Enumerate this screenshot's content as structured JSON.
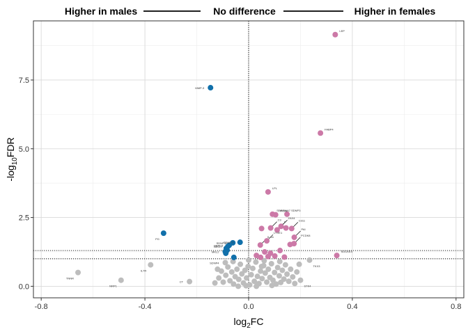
{
  "chart_data": {
    "type": "scatter",
    "title": "",
    "xlabel": "log",
    "xlabel_sub": "2",
    "xlabel_suffix": "FC",
    "ylabel_prefix": "-log",
    "ylabel_sub": "10",
    "ylabel_suffix": "FDR",
    "xlim": [
      -0.83,
      0.83
    ],
    "ylim": [
      -0.42,
      9.65
    ],
    "x_ticks": [
      -0.8,
      -0.4,
      0.0,
      0.4,
      0.8
    ],
    "x_tick_labels": [
      "-0.8",
      "-0.4",
      "0.0",
      "0.4",
      "0.8"
    ],
    "y_ticks": [
      0.0,
      2.5,
      5.0,
      7.5
    ],
    "y_tick_labels": [
      "0.0",
      "2.5",
      "5.0",
      "7.5"
    ],
    "grid": true,
    "vline_x": 0,
    "hlines_y": [
      1.0,
      1.3
    ],
    "header": {
      "left": "Higher in males",
      "center": "No difference",
      "right": "Higher in females"
    },
    "colors": {
      "males": "#1170aa",
      "females": "#cc79a7",
      "none": "#bdbdbd"
    },
    "series": [
      {
        "group": "males",
        "points": [
          {
            "x": -0.147,
            "y": 7.22,
            "label": "MMP-3"
          },
          {
            "x": -0.328,
            "y": 1.93,
            "label": "PG"
          },
          {
            "x": -0.061,
            "y": 1.58,
            "label": "SDNP-2"
          },
          {
            "x": -0.033,
            "y": 1.6,
            "label": "SDNP-T"
          },
          {
            "x": -0.075,
            "y": 1.49,
            "label": "MMP-8"
          },
          {
            "x": -0.08,
            "y": 1.45,
            "label": "NECR"
          },
          {
            "x": -0.086,
            "y": 1.38,
            "label": ""
          },
          {
            "x": -0.083,
            "y": 1.31,
            "label": ""
          },
          {
            "x": -0.09,
            "y": 1.26,
            "label": "MKL2"
          },
          {
            "x": -0.088,
            "y": 1.2,
            "label": ""
          },
          {
            "x": -0.057,
            "y": 1.05,
            "label": ""
          }
        ]
      },
      {
        "group": "females",
        "points": [
          {
            "x": 0.334,
            "y": 9.15,
            "label": "LEP"
          },
          {
            "x": 0.277,
            "y": 5.57,
            "label": "FABP4"
          },
          {
            "x": 0.075,
            "y": 3.43,
            "label": "LPL"
          },
          {
            "x": 0.092,
            "y": 2.62,
            "label": "SERPINA7"
          },
          {
            "x": 0.104,
            "y": 2.6,
            "label": "PKDC"
          },
          {
            "x": 0.148,
            "y": 2.62,
            "label": "SDNP3"
          },
          {
            "x": 0.05,
            "y": 2.1,
            "label": ""
          },
          {
            "x": 0.085,
            "y": 2.12,
            "label": "C3"
          },
          {
            "x": 0.125,
            "y": 2.18,
            "label": "ZAX4"
          },
          {
            "x": 0.144,
            "y": 2.12,
            "label": ""
          },
          {
            "x": 0.166,
            "y": 2.1,
            "label": "Cd11"
          },
          {
            "x": 0.11,
            "y": 2.05,
            "label": "P"
          },
          {
            "x": 0.07,
            "y": 1.65,
            "label": "LYVE1"
          },
          {
            "x": 0.176,
            "y": 1.78,
            "label": "PAI"
          },
          {
            "x": 0.16,
            "y": 1.52,
            "label": ""
          },
          {
            "x": 0.175,
            "y": 1.55,
            "label": "PCDK8"
          },
          {
            "x": 0.045,
            "y": 1.5,
            "label": "IL-1b"
          },
          {
            "x": 0.121,
            "y": 1.3,
            "label": ""
          },
          {
            "x": 0.062,
            "y": 1.25,
            "label": ""
          },
          {
            "x": 0.084,
            "y": 1.2,
            "label": ""
          },
          {
            "x": 0.03,
            "y": 1.12,
            "label": ""
          },
          {
            "x": 0.046,
            "y": 1.05,
            "label": ""
          },
          {
            "x": 0.075,
            "y": 1.08,
            "label": ""
          },
          {
            "x": 0.101,
            "y": 1.1,
            "label": ""
          },
          {
            "x": 0.138,
            "y": 1.06,
            "label": ""
          },
          {
            "x": 0.34,
            "y": 1.12,
            "label": "SOCKE4"
          }
        ]
      },
      {
        "group": "none",
        "points": [
          {
            "x": -0.658,
            "y": 0.5,
            "label": "TNNR"
          },
          {
            "x": -0.492,
            "y": 0.22,
            "label": "NRP1"
          },
          {
            "x": -0.378,
            "y": 0.78,
            "label": "IL7R"
          },
          {
            "x": -0.228,
            "y": 0.17,
            "label": "CT"
          },
          {
            "x": -0.09,
            "y": 0.86,
            "label": "SDNP4"
          },
          {
            "x": 0.235,
            "y": 0.95,
            "label": "TKX3"
          },
          {
            "x": 0.2,
            "y": 0.22,
            "label": "STK4"
          },
          {
            "x": -0.115,
            "y": 0.3,
            "label": ""
          },
          {
            "x": -0.105,
            "y": 0.55,
            "label": ""
          },
          {
            "x": -0.098,
            "y": 0.15,
            "label": ""
          },
          {
            "x": -0.088,
            "y": 0.4,
            "label": ""
          },
          {
            "x": -0.08,
            "y": 0.7,
            "label": ""
          },
          {
            "x": -0.072,
            "y": 0.2,
            "label": ""
          },
          {
            "x": -0.065,
            "y": 0.52,
            "label": ""
          },
          {
            "x": -0.058,
            "y": 0.08,
            "label": ""
          },
          {
            "x": -0.052,
            "y": 0.35,
            "label": ""
          },
          {
            "x": -0.045,
            "y": 0.62,
            "label": ""
          },
          {
            "x": -0.038,
            "y": 0.25,
            "label": ""
          },
          {
            "x": -0.032,
            "y": 0.8,
            "label": ""
          },
          {
            "x": -0.026,
            "y": 0.45,
            "label": ""
          },
          {
            "x": -0.02,
            "y": 0.12,
            "label": ""
          },
          {
            "x": -0.014,
            "y": 0.58,
            "label": ""
          },
          {
            "x": -0.008,
            "y": 0.3,
            "label": ""
          },
          {
            "x": -0.002,
            "y": 0.72,
            "label": ""
          },
          {
            "x": 0.004,
            "y": 0.05,
            "label": ""
          },
          {
            "x": 0.01,
            "y": 0.42,
            "label": ""
          },
          {
            "x": 0.016,
            "y": 0.65,
            "label": ""
          },
          {
            "x": 0.022,
            "y": 0.18,
            "label": ""
          },
          {
            "x": 0.028,
            "y": 0.88,
            "label": ""
          },
          {
            "x": 0.034,
            "y": 0.36,
            "label": ""
          },
          {
            "x": 0.04,
            "y": 0.1,
            "label": ""
          },
          {
            "x": 0.046,
            "y": 0.55,
            "label": ""
          },
          {
            "x": 0.052,
            "y": 0.28,
            "label": ""
          },
          {
            "x": 0.058,
            "y": 0.75,
            "label": ""
          },
          {
            "x": 0.064,
            "y": 0.48,
            "label": ""
          },
          {
            "x": 0.07,
            "y": 0.15,
            "label": ""
          },
          {
            "x": 0.076,
            "y": 0.62,
            "label": ""
          },
          {
            "x": 0.082,
            "y": 0.32,
            "label": ""
          },
          {
            "x": 0.088,
            "y": 0.82,
            "label": ""
          },
          {
            "x": 0.094,
            "y": 0.22,
            "label": ""
          },
          {
            "x": 0.1,
            "y": 0.5,
            "label": ""
          },
          {
            "x": 0.106,
            "y": 0.08,
            "label": ""
          },
          {
            "x": 0.112,
            "y": 0.68,
            "label": ""
          },
          {
            "x": 0.118,
            "y": 0.38,
            "label": ""
          },
          {
            "x": 0.124,
            "y": 0.14,
            "label": ""
          },
          {
            "x": 0.13,
            "y": 0.58,
            "label": ""
          },
          {
            "x": 0.136,
            "y": 0.26,
            "label": ""
          },
          {
            "x": 0.142,
            "y": 0.78,
            "label": ""
          },
          {
            "x": 0.148,
            "y": 0.44,
            "label": ""
          },
          {
            "x": 0.155,
            "y": 0.18,
            "label": ""
          },
          {
            "x": 0.162,
            "y": 0.62,
            "label": ""
          },
          {
            "x": 0.17,
            "y": 0.34,
            "label": ""
          },
          {
            "x": 0.178,
            "y": 0.1,
            "label": ""
          },
          {
            "x": 0.186,
            "y": 0.52,
            "label": ""
          },
          {
            "x": -0.06,
            "y": 0.9,
            "label": ""
          },
          {
            "x": 0.0,
            "y": 0.95,
            "label": ""
          },
          {
            "x": 0.06,
            "y": 0.93,
            "label": ""
          },
          {
            "x": -0.01,
            "y": 0.02,
            "label": ""
          },
          {
            "x": 0.03,
            "y": 0.0,
            "label": ""
          },
          {
            "x": 0.09,
            "y": 0.03,
            "label": ""
          },
          {
            "x": -0.12,
            "y": 0.62,
            "label": ""
          },
          {
            "x": -0.13,
            "y": 0.12,
            "label": ""
          },
          {
            "x": 0.12,
            "y": 0.9,
            "label": ""
          },
          {
            "x": 0.195,
            "y": 0.8,
            "label": ""
          },
          {
            "x": -0.04,
            "y": 0.0,
            "label": ""
          },
          {
            "x": 0.05,
            "y": 0.72,
            "label": ""
          }
        ]
      }
    ]
  }
}
